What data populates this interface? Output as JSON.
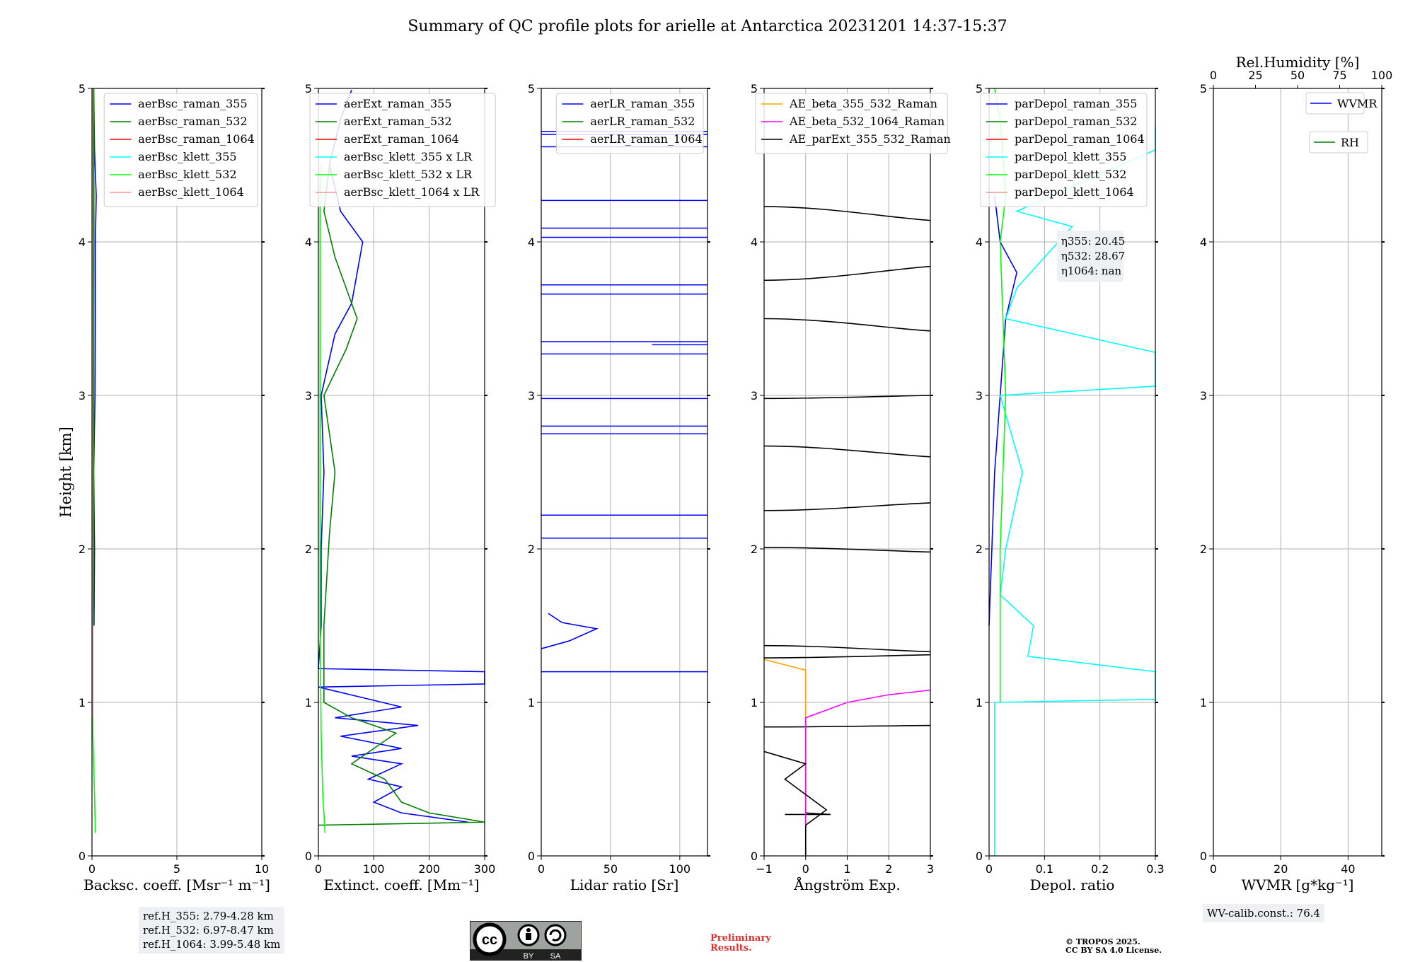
{
  "figure": {
    "title": "Summary of QC profile plots for arielle at Antarctica 20231201 14:37-15:37",
    "ref_heights": [
      "ref.H_355: 2.79-4.28 km",
      "ref.H_532: 6.97-8.47 km",
      "ref.H_1064: 3.99-5.48 km"
    ],
    "wv_calib": "WV-calib.const.: 76.4",
    "preliminary": [
      "Preliminary",
      "Results."
    ],
    "copyright": [
      "© TROPOS 2025.",
      "CC BY SA 4.0 License."
    ],
    "license_badge": [
      "BY",
      "SA"
    ],
    "colors": {
      "blue": "#0000ff",
      "green": "#008000",
      "red": "#ff0000",
      "cyan": "#00ffff",
      "lime": "#00ff00",
      "pink": "#ff9090",
      "orange": "#ffa500",
      "magenta": "#ff00ff",
      "black": "#000000"
    }
  },
  "chart_data": [
    {
      "type": "line",
      "id": "bsc",
      "xlabel": "Backsc. coeff. [Msr⁻¹ m⁻¹]",
      "ylabel": "Height [km]",
      "xlim": [
        0,
        10
      ],
      "ylim": [
        0,
        5
      ],
      "xticks": [
        0,
        5,
        10
      ],
      "yticks": [
        0,
        1,
        2,
        3,
        4,
        5
      ],
      "legend": {
        "placement": "top-right",
        "entries": [
          "aerBsc_raman_355",
          "aerBsc_raman_532",
          "aerBsc_raman_1064",
          "aerBsc_klett_355",
          "aerBsc_klett_532",
          "aerBsc_klett_1064"
        ]
      },
      "series": [
        {
          "name": "aerBsc_raman_355",
          "color": "#0000ff",
          "points": [
            [
              0.12,
              1.5
            ],
            [
              0.15,
              2.0
            ],
            [
              0.1,
              2.5
            ],
            [
              0.18,
              3.0
            ],
            [
              0.2,
              3.5
            ],
            [
              0.2,
              4.0
            ],
            [
              0.25,
              4.3
            ],
            [
              0.15,
              4.6
            ],
            [
              0.1,
              5.0
            ]
          ]
        },
        {
          "name": "aerBsc_raman_532",
          "color": "#008000",
          "points": [
            [
              0.08,
              1.5
            ],
            [
              0.1,
              3.0
            ],
            [
              0.12,
              4.0
            ],
            [
              0.1,
              5.0
            ]
          ]
        },
        {
          "name": "aerBsc_klett_532",
          "color": "#00ff00",
          "points": [
            [
              0.2,
              0.15
            ],
            [
              0.15,
              0.4
            ],
            [
              0.05,
              0.8
            ],
            [
              0.05,
              1.5
            ],
            [
              0.05,
              3.0
            ],
            [
              0.05,
              5.0
            ]
          ]
        },
        {
          "name": "aerBsc_klett_1064",
          "color": "#ff9090",
          "points": [
            [
              0.02,
              0.9
            ],
            [
              0.02,
              5.0
            ]
          ]
        }
      ]
    },
    {
      "type": "line",
      "id": "ext",
      "xlabel": "Extinct. coeff. [Mm⁻¹]",
      "ylabel": "",
      "xlim": [
        0,
        300
      ],
      "ylim": [
        0,
        5
      ],
      "xticks": [
        0,
        100,
        200,
        300
      ],
      "yticks": [
        0,
        1,
        2,
        3,
        4,
        5
      ],
      "legend": {
        "placement": "top-left",
        "entries": [
          "aerExt_raman_355",
          "aerExt_raman_532",
          "aerExt_raman_1064",
          "aerBsc_klett_355 x LR",
          "aerBsc_klett_532 x LR",
          "aerBsc_klett_1064 x LR"
        ]
      },
      "series": [
        {
          "name": "aerExt_raman_355",
          "color": "#0000ff",
          "points": [
            [
              270,
              0.22
            ],
            [
              150,
              0.28
            ],
            [
              100,
              0.35
            ],
            [
              150,
              0.45
            ],
            [
              90,
              0.5
            ],
            [
              150,
              0.6
            ],
            [
              60,
              0.65
            ],
            [
              150,
              0.7
            ],
            [
              40,
              0.78
            ],
            [
              180,
              0.85
            ],
            [
              30,
              0.9
            ],
            [
              150,
              0.97
            ],
            [
              0,
              1.1
            ],
            [
              300,
              1.12
            ],
            [
              300,
              1.2
            ],
            [
              0,
              1.22
            ],
            [
              5,
              1.5
            ],
            [
              5,
              2.0
            ],
            [
              10,
              2.5
            ],
            [
              5,
              3.0
            ],
            [
              30,
              3.4
            ],
            [
              60,
              3.6
            ],
            [
              70,
              3.8
            ],
            [
              80,
              4.0
            ],
            [
              40,
              4.2
            ],
            [
              20,
              4.5
            ],
            [
              40,
              4.8
            ],
            [
              60,
              4.99
            ]
          ]
        },
        {
          "name": "aerExt_raman_532",
          "color": "#008000",
          "points": [
            [
              0,
              0.2
            ],
            [
              300,
              0.22
            ],
            [
              200,
              0.28
            ],
            [
              150,
              0.35
            ],
            [
              120,
              0.5
            ],
            [
              60,
              0.6
            ],
            [
              100,
              0.7
            ],
            [
              140,
              0.8
            ],
            [
              60,
              0.9
            ],
            [
              10,
              1.0
            ],
            [
              10,
              1.5
            ],
            [
              20,
              2.1
            ],
            [
              30,
              2.5
            ],
            [
              10,
              3.0
            ],
            [
              50,
              3.3
            ],
            [
              70,
              3.5
            ],
            [
              30,
              3.9
            ],
            [
              10,
              4.2
            ],
            [
              20,
              4.5
            ]
          ]
        },
        {
          "name": "aerBsc_klett_532 x LR",
          "color": "#00ff00",
          "points": [
            [
              12,
              0.15
            ],
            [
              8,
              0.4
            ],
            [
              5,
              0.8
            ],
            [
              3,
              1.5
            ],
            [
              3,
              3.0
            ],
            [
              3,
              4.5
            ]
          ]
        }
      ]
    },
    {
      "type": "line",
      "id": "lr",
      "xlabel": "Lidar ratio [Sr]",
      "ylabel": "",
      "xlim": [
        0,
        120
      ],
      "ylim": [
        0,
        5
      ],
      "xticks": [
        0,
        50,
        100
      ],
      "yticks": [
        0,
        1,
        2,
        3,
        4,
        5
      ],
      "legend": {
        "placement": "top-right",
        "entries": [
          "aerLR_raman_355",
          "aerLR_raman_532",
          "aerLR_raman_1064"
        ]
      },
      "series": [
        {
          "name": "aerLR_raman_355",
          "color": "#0000ff",
          "points": [
            [
              0,
              1.35
            ],
            [
              20,
              1.4
            ],
            [
              40,
              1.48
            ],
            [
              15,
              1.52
            ],
            [
              5,
              1.58
            ]
          ]
        }
      ],
      "spikes": [
        1.2,
        2.07,
        2.22,
        2.75,
        2.8,
        2.98,
        3.27,
        3.35,
        3.66,
        3.72,
        4.03,
        4.09,
        4.27,
        4.62,
        4.7,
        4.72
      ]
    },
    {
      "type": "line",
      "id": "ae",
      "xlabel": "Ångström Exp.",
      "ylabel": "",
      "xlim": [
        -1,
        3
      ],
      "ylim": [
        0,
        5
      ],
      "xticks": [
        -1,
        0,
        1,
        2,
        3
      ],
      "yticks": [
        0,
        1,
        2,
        3,
        4,
        5
      ],
      "legend": {
        "placement": "top-left",
        "entries": [
          "AE_beta_355_532_Raman",
          "AE_beta_532_1064_Raman",
          "AE_parExt_355_532_Raman"
        ]
      },
      "series": [
        {
          "name": "AE_beta_355_532_Raman",
          "color": "#ffa500",
          "points": [
            [
              -1,
              1.28
            ],
            [
              0,
              1.21
            ],
            [
              0,
              0.9
            ]
          ]
        },
        {
          "name": "AE_beta_532_1064_Raman",
          "color": "#ff00ff",
          "points": [
            [
              0,
              0.0
            ],
            [
              0,
              0.9
            ],
            [
              1,
              1.0
            ],
            [
              2,
              1.05
            ],
            [
              3,
              1.08
            ]
          ]
        },
        {
          "name": "AE_parExt_355_532_Raman",
          "color": "#000000",
          "points": [
            [
              0,
              0.0
            ],
            [
              0,
              0.2
            ],
            [
              0.5,
              0.3
            ],
            [
              -0.5,
              0.5
            ],
            [
              0,
              0.6
            ],
            [
              -1,
              0.68
            ]
          ]
        }
      ]
    },
    {
      "type": "line",
      "id": "depol",
      "xlabel": "Depol. ratio",
      "ylabel": "",
      "xlim": [
        0,
        0.3
      ],
      "ylim": [
        0,
        5
      ],
      "xticks": [
        0.0,
        0.1,
        0.2,
        0.3
      ],
      "yticks": [
        0,
        1,
        2,
        3,
        4,
        5
      ],
      "legend": {
        "placement": "top-left",
        "entries": [
          "parDepol_raman_355",
          "parDepol_raman_532",
          "parDepol_raman_1064",
          "parDepol_klett_355",
          "parDepol_klett_532",
          "parDepol_klett_1064"
        ]
      },
      "annotation": [
        "η355: 20.45",
        "η532: 28.67",
        "η1064: nan"
      ],
      "series": [
        {
          "name": "parDepol_raman_355",
          "color": "#0000ff",
          "points": [
            [
              0.0,
              1.5
            ],
            [
              0.005,
              2.0
            ],
            [
              0.01,
              2.5
            ],
            [
              0.02,
              3.0
            ],
            [
              0.03,
              3.5
            ],
            [
              0.05,
              3.8
            ],
            [
              0.02,
              4.0
            ],
            [
              0.01,
              4.3
            ]
          ]
        },
        {
          "name": "parDepol_klett_355",
          "color": "#00ffff",
          "points": [
            [
              0.01,
              0.0
            ],
            [
              0.01,
              0.4
            ],
            [
              0.01,
              1.0
            ],
            [
              0.3,
              1.02
            ],
            [
              0.3,
              1.05
            ],
            [
              0.3,
              1.12
            ],
            [
              0.3,
              1.2
            ],
            [
              0.07,
              1.3
            ],
            [
              0.08,
              1.5
            ],
            [
              0.02,
              1.7
            ],
            [
              0.03,
              2.0
            ],
            [
              0.06,
              2.5
            ],
            [
              0.02,
              3.0
            ],
            [
              0.3,
              3.06
            ],
            [
              0.3,
              3.16
            ],
            [
              0.3,
              3.28
            ],
            [
              0.03,
              3.5
            ],
            [
              0.05,
              3.7
            ],
            [
              0.15,
              4.1
            ],
            [
              0.05,
              4.2
            ],
            [
              0.3,
              4.6
            ],
            [
              0.3,
              4.75
            ]
          ]
        },
        {
          "name": "parDepol_klett_532",
          "color": "#00ff00",
          "points": [
            [
              0.02,
              1.0
            ],
            [
              0.02,
              2.0
            ],
            [
              0.03,
              3.0
            ],
            [
              0.02,
              4.0
            ],
            [
              0.03,
              4.3
            ],
            [
              0.02,
              4.8
            ],
            [
              0.01,
              5.0
            ]
          ]
        }
      ]
    },
    {
      "type": "line",
      "id": "wv",
      "xlabel": "WVMR [g*kg⁻¹]",
      "ylabel": "",
      "top_label": "Rel.Humidity [%]",
      "xlim": [
        0,
        50
      ],
      "ylim": [
        0,
        5
      ],
      "xticks": [
        0,
        20,
        40
      ],
      "top_xticks": [
        0,
        25,
        50,
        75,
        100
      ],
      "yticks": [
        0,
        1,
        2,
        3,
        4,
        5
      ],
      "legend": {
        "placement": "top-right",
        "entries": [
          "WVMR",
          "RH"
        ]
      },
      "series": []
    }
  ]
}
